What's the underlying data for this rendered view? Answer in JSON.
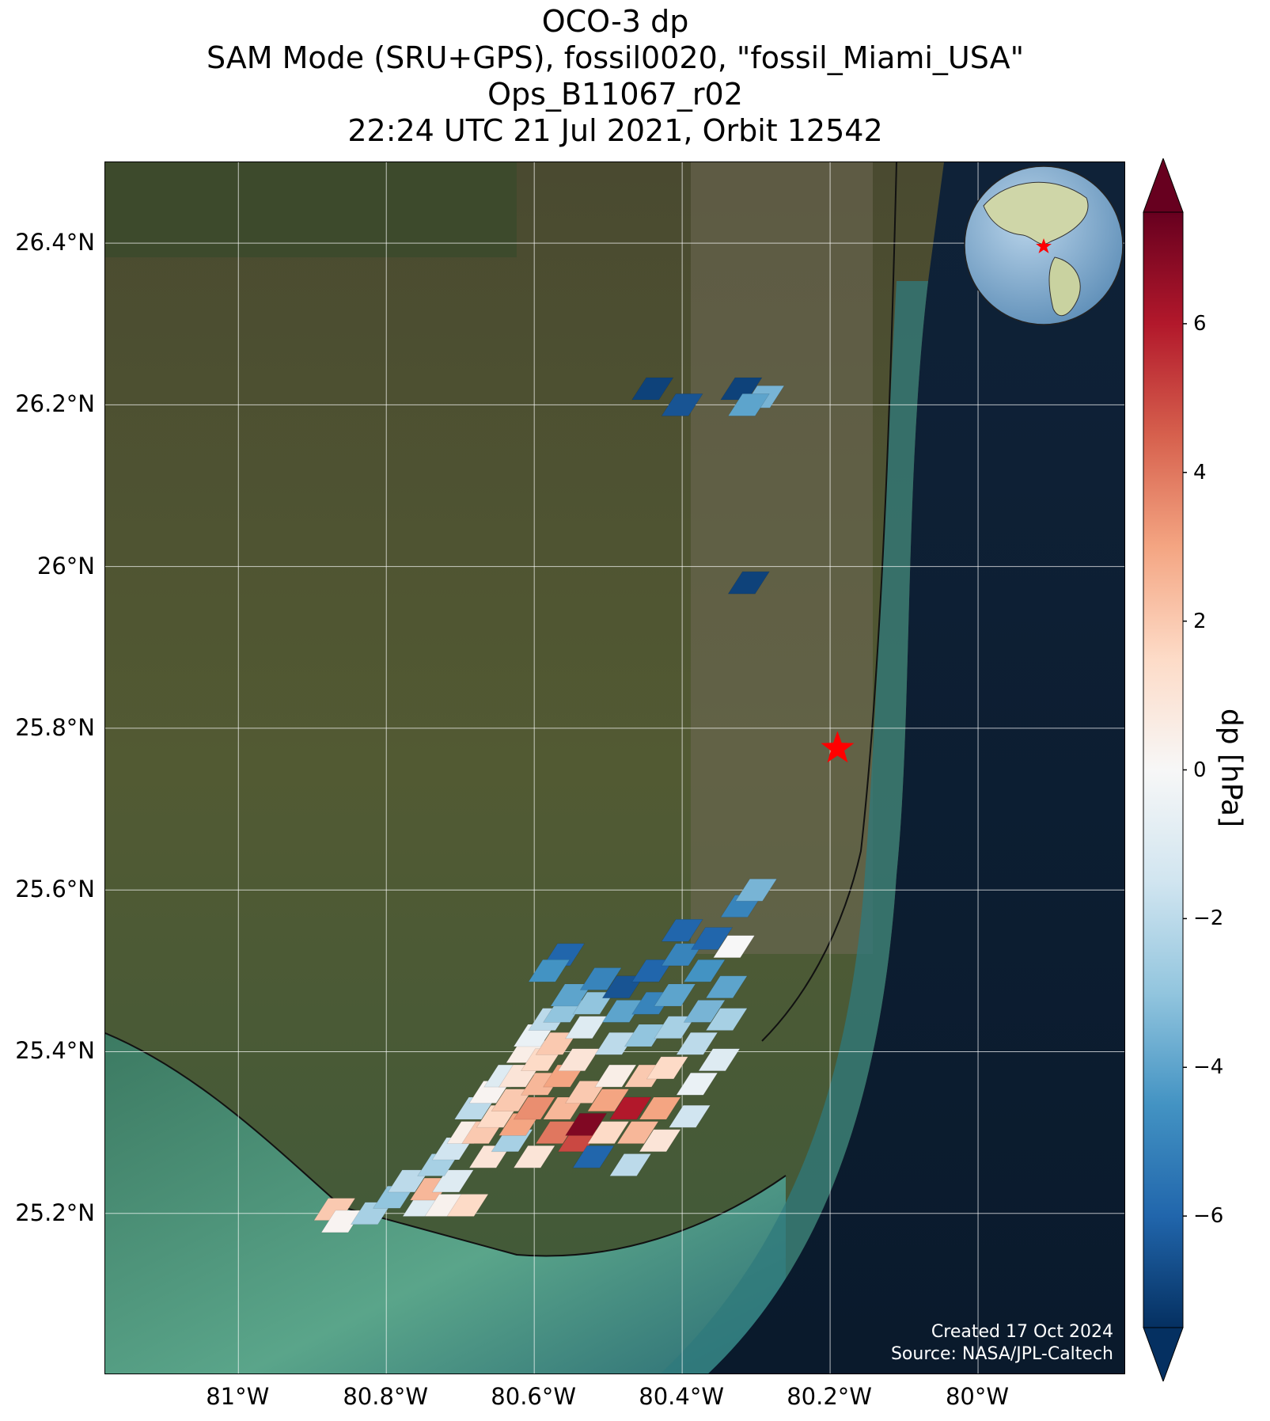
{
  "title": {
    "line1": "OCO-3 dp",
    "line2": "SAM Mode (SRU+GPS), fossil0020, \"fossil_Miami_USA\"",
    "line3": "Ops_B11067_r02",
    "line4": "22:24 UTC 21 Jul 2021, Orbit 12542"
  },
  "map": {
    "lon_range": [
      -81.18,
      -79.8
    ],
    "lat_range": [
      25.0,
      26.5
    ],
    "lat_ticks": [
      {
        "value": 26.4,
        "label": "26.4°N"
      },
      {
        "value": 26.2,
        "label": "26.2°N"
      },
      {
        "value": 26.0,
        "label": "26°N"
      },
      {
        "value": 25.8,
        "label": "25.8°N"
      },
      {
        "value": 25.6,
        "label": "25.6°N"
      },
      {
        "value": 25.4,
        "label": "25.4°N"
      },
      {
        "value": 25.2,
        "label": "25.2°N"
      }
    ],
    "lon_ticks": [
      {
        "value": -81.0,
        "label": "81°W"
      },
      {
        "value": -80.8,
        "label": "80.8°W"
      },
      {
        "value": -80.6,
        "label": "80.6°W"
      },
      {
        "value": -80.4,
        "label": "80.4°W"
      },
      {
        "value": -80.2,
        "label": "80.2°W"
      },
      {
        "value": -80.0,
        "label": "80°W"
      }
    ],
    "target_site": {
      "lon": -80.19,
      "lat": 25.775,
      "marker": "red-star"
    },
    "basemap": "satellite imagery",
    "credits": {
      "created": "Created 17 Oct 2024",
      "source": "Source: NASA/JPL-Caltech"
    },
    "inset_globe": "western hemisphere globe with red star at target"
  },
  "colorbar": {
    "label": "dp [hPa]",
    "range": [
      -7.5,
      7.5
    ],
    "ticks": [
      "6",
      "4",
      "2",
      "0",
      "−2",
      "−4",
      "−6"
    ],
    "tick_values": [
      6,
      4,
      2,
      0,
      -2,
      -4,
      -6
    ],
    "colormap": "RdBu_r",
    "extend": "both"
  },
  "colors": {
    "target_marker": "#ff0000",
    "gridline": "#ffffff",
    "ocean": "#0b1e35"
  },
  "chart_data": {
    "type": "heatmap",
    "variable": "dp",
    "units": "hPa",
    "colormap": "RdBu_r",
    "vmin": -7.5,
    "vmax": 7.5,
    "soundings": [
      {
        "lon": -80.87,
        "lat": 25.205,
        "dp": 2.0
      },
      {
        "lon": -80.86,
        "lat": 25.19,
        "dp": 0.2
      },
      {
        "lon": -80.82,
        "lat": 25.2,
        "dp": -2.5
      },
      {
        "lon": -80.79,
        "lat": 25.22,
        "dp": -3.0
      },
      {
        "lon": -80.77,
        "lat": 25.24,
        "dp": -2.0
      },
      {
        "lon": -80.75,
        "lat": 25.21,
        "dp": -1.0
      },
      {
        "lon": -80.74,
        "lat": 25.23,
        "dp": 2.5
      },
      {
        "lon": -80.72,
        "lat": 25.21,
        "dp": 0.3
      },
      {
        "lon": -80.71,
        "lat": 25.24,
        "dp": -1.0
      },
      {
        "lon": -80.69,
        "lat": 25.21,
        "dp": 1.5
      },
      {
        "lon": -80.73,
        "lat": 25.26,
        "dp": -2.5
      },
      {
        "lon": -80.71,
        "lat": 25.28,
        "dp": -1.5
      },
      {
        "lon": -80.69,
        "lat": 25.3,
        "dp": 0.5
      },
      {
        "lon": -80.68,
        "lat": 25.33,
        "dp": -2.0
      },
      {
        "lon": -80.66,
        "lat": 25.27,
        "dp": 1.0
      },
      {
        "lon": -80.67,
        "lat": 25.3,
        "dp": 2.0
      },
      {
        "lon": -80.65,
        "lat": 25.32,
        "dp": 1.5
      },
      {
        "lon": -80.66,
        "lat": 25.35,
        "dp": 0.2
      },
      {
        "lon": -80.64,
        "lat": 25.37,
        "dp": -1.0
      },
      {
        "lon": -80.63,
        "lat": 25.29,
        "dp": -2.5
      },
      {
        "lon": -80.62,
        "lat": 25.31,
        "dp": 3.0
      },
      {
        "lon": -80.63,
        "lat": 25.34,
        "dp": 2.0
      },
      {
        "lon": -80.62,
        "lat": 25.37,
        "dp": 1.0
      },
      {
        "lon": -80.61,
        "lat": 25.4,
        "dp": 0.5
      },
      {
        "lon": -80.6,
        "lat": 25.27,
        "dp": 1.0
      },
      {
        "lon": -80.6,
        "lat": 25.33,
        "dp": 3.5
      },
      {
        "lon": -80.59,
        "lat": 25.36,
        "dp": 2.5
      },
      {
        "lon": -80.59,
        "lat": 25.39,
        "dp": 1.5
      },
      {
        "lon": -80.6,
        "lat": 25.42,
        "dp": -0.5
      },
      {
        "lon": -80.58,
        "lat": 25.44,
        "dp": -2.0
      },
      {
        "lon": -80.57,
        "lat": 25.3,
        "dp": 4.0
      },
      {
        "lon": -80.56,
        "lat": 25.33,
        "dp": 2.5
      },
      {
        "lon": -80.56,
        "lat": 25.37,
        "dp": 3.0
      },
      {
        "lon": -80.57,
        "lat": 25.41,
        "dp": 2.0
      },
      {
        "lon": -80.56,
        "lat": 25.45,
        "dp": -3.0
      },
      {
        "lon": -80.55,
        "lat": 25.47,
        "dp": -4.0
      },
      {
        "lon": -80.54,
        "lat": 25.29,
        "dp": 5.0
      },
      {
        "lon": -80.53,
        "lat": 25.31,
        "dp": 7.0
      },
      {
        "lon": -80.52,
        "lat": 25.27,
        "dp": -6.0
      },
      {
        "lon": -80.53,
        "lat": 25.35,
        "dp": 2.0
      },
      {
        "lon": -80.54,
        "lat": 25.39,
        "dp": 1.0
      },
      {
        "lon": -80.53,
        "lat": 25.43,
        "dp": -1.0
      },
      {
        "lon": -80.52,
        "lat": 25.46,
        "dp": -3.0
      },
      {
        "lon": -80.51,
        "lat": 25.49,
        "dp": -5.0
      },
      {
        "lon": -80.5,
        "lat": 25.34,
        "dp": 3.0
      },
      {
        "lon": -80.5,
        "lat": 25.3,
        "dp": 1.5
      },
      {
        "lon": -80.49,
        "lat": 25.37,
        "dp": 0.5
      },
      {
        "lon": -80.49,
        "lat": 25.41,
        "dp": -2.0
      },
      {
        "lon": -80.48,
        "lat": 25.45,
        "dp": -4.0
      },
      {
        "lon": -80.48,
        "lat": 25.48,
        "dp": -6.5
      },
      {
        "lon": -80.47,
        "lat": 25.33,
        "dp": 6.0
      },
      {
        "lon": -80.46,
        "lat": 25.3,
        "dp": 2.5
      },
      {
        "lon": -80.47,
        "lat": 25.26,
        "dp": -2.0
      },
      {
        "lon": -80.45,
        "lat": 25.37,
        "dp": 2.0
      },
      {
        "lon": -80.45,
        "lat": 25.42,
        "dp": -3.0
      },
      {
        "lon": -80.44,
        "lat": 25.46,
        "dp": -5.0
      },
      {
        "lon": -80.44,
        "lat": 25.5,
        "dp": -6.0
      },
      {
        "lon": -80.43,
        "lat": 25.29,
        "dp": 1.0
      },
      {
        "lon": -80.43,
        "lat": 25.33,
        "dp": 3.0
      },
      {
        "lon": -80.42,
        "lat": 25.38,
        "dp": 1.5
      },
      {
        "lon": -80.41,
        "lat": 25.43,
        "dp": -2.5
      },
      {
        "lon": -80.41,
        "lat": 25.47,
        "dp": -4.0
      },
      {
        "lon": -80.4,
        "lat": 25.52,
        "dp": -5.0
      },
      {
        "lon": -80.4,
        "lat": 25.55,
        "dp": -6.0
      },
      {
        "lon": -80.39,
        "lat": 25.32,
        "dp": -1.5
      },
      {
        "lon": -80.38,
        "lat": 25.36,
        "dp": -0.5
      },
      {
        "lon": -80.38,
        "lat": 25.41,
        "dp": -2.0
      },
      {
        "lon": -80.37,
        "lat": 25.45,
        "dp": -3.5
      },
      {
        "lon": -80.37,
        "lat": 25.5,
        "dp": -4.5
      },
      {
        "lon": -80.36,
        "lat": 25.54,
        "dp": -6.0
      },
      {
        "lon": -80.35,
        "lat": 25.39,
        "dp": -1.0
      },
      {
        "lon": -80.34,
        "lat": 25.44,
        "dp": -2.5
      },
      {
        "lon": -80.34,
        "lat": 25.48,
        "dp": -4.0
      },
      {
        "lon": -80.33,
        "lat": 25.53,
        "dp": 0.0
      },
      {
        "lon": -80.32,
        "lat": 25.58,
        "dp": -5.0
      },
      {
        "lon": -80.3,
        "lat": 25.6,
        "dp": -3.5
      },
      {
        "lon": -80.56,
        "lat": 25.52,
        "dp": -6.0
      },
      {
        "lon": -80.58,
        "lat": 25.5,
        "dp": -4.5
      },
      {
        "lon": -80.44,
        "lat": 26.22,
        "dp": -7.0
      },
      {
        "lon": -80.4,
        "lat": 26.2,
        "dp": -6.5
      },
      {
        "lon": -80.32,
        "lat": 26.22,
        "dp": -7.0
      },
      {
        "lon": -80.29,
        "lat": 26.21,
        "dp": -3.5
      },
      {
        "lon": -80.31,
        "lat": 26.2,
        "dp": -4.0
      },
      {
        "lon": -80.31,
        "lat": 25.98,
        "dp": -7.0
      }
    ]
  }
}
